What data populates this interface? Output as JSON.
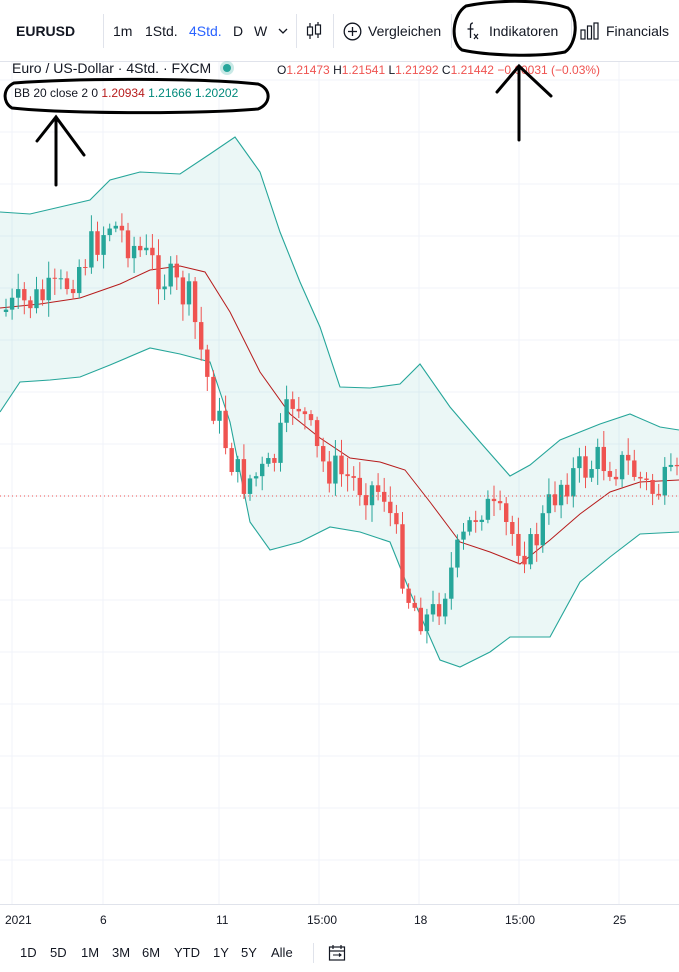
{
  "toolbar": {
    "symbol": "EURUSD",
    "intervals": [
      "1m",
      "1Std.",
      "4Std.",
      "D",
      "W"
    ],
    "active_interval": "4Std.",
    "compare_label": "Vergleichen",
    "indicators_label": "Indikatoren",
    "financials_label": "Financials"
  },
  "legend": {
    "title": "Euro / US-Dollar · 4Std. · FXCM",
    "open_key": "O",
    "open_val": "1.21473",
    "high_key": "H",
    "high_val": "1.21541",
    "low_key": "L",
    "low_val": "1.21292",
    "close_key": "C",
    "close_val": "1.21442",
    "change": "−0.00031 (−0.03%)"
  },
  "indicator": {
    "name": "BB 20 close 2 0",
    "basis": "1.20934",
    "upper": "1.21666",
    "lower": "1.20202"
  },
  "time_axis": {
    "labels": [
      "2021",
      "6",
      "11",
      "15:00",
      "18",
      "15:00",
      "25"
    ]
  },
  "range_bar": {
    "buttons": [
      "1D",
      "5D",
      "1M",
      "3M",
      "6M",
      "YTD",
      "1Y",
      "5Y",
      "Alle"
    ]
  },
  "colors": {
    "up": "#26a69a",
    "down": "#ef5350",
    "band": "#26a69a",
    "basis": "#b71c1c",
    "band_fill": "rgba(38,166,154,0.09)",
    "accent": "#2962ff"
  },
  "icons": {
    "chevron": "chevron-down-icon",
    "candles": "candlestick-icon",
    "compare": "plus-circle-icon",
    "indicators": "fx-icon",
    "financials": "bar-chart-icon",
    "range": "date-range-icon"
  }
}
